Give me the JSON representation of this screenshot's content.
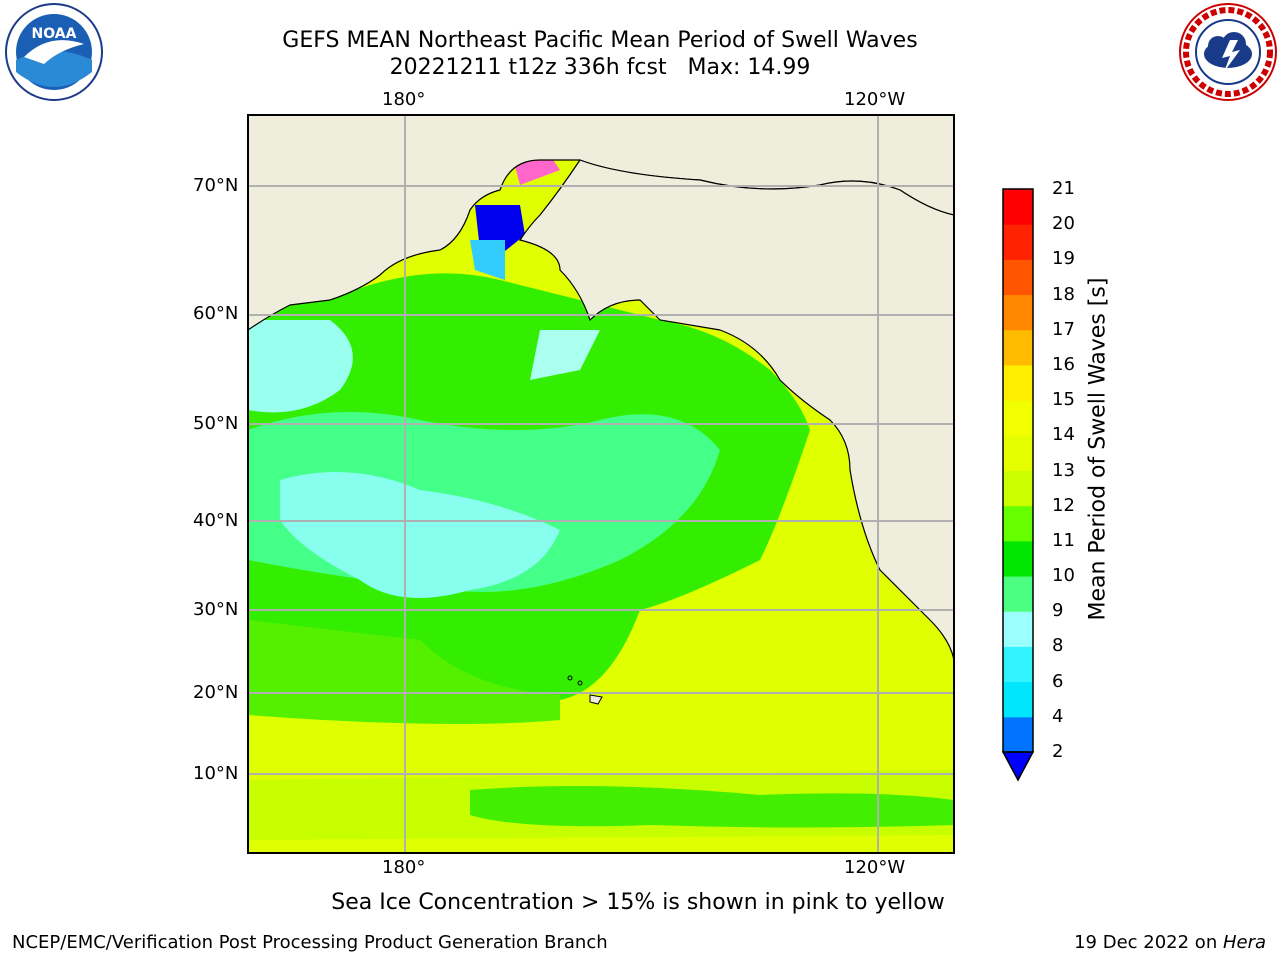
{
  "title": {
    "line1": "GEFS MEAN Northeast Pacific Mean Period of Swell Waves",
    "line2": "20221211 t12z 336h fcst   Max: 14.99"
  },
  "map": {
    "lon_ticks_top": [
      "180°",
      "120°W"
    ],
    "lon_ticks_bottom": [
      "180°",
      "120°W"
    ],
    "lat_ticks": [
      "70°N",
      "60°N",
      "50°N",
      "40°N",
      "30°N",
      "20°N",
      "10°N"
    ],
    "colors": {
      "land": "#efeedc",
      "grid": "#b0b0b0"
    }
  },
  "colorbar": {
    "label": "Mean Period of Swell Waves [s]",
    "levels": [
      "2",
      "4",
      "6",
      "8",
      "9",
      "10",
      "11",
      "12",
      "13",
      "14",
      "15",
      "16",
      "17",
      "18",
      "19",
      "20",
      "21"
    ],
    "colors": [
      "#0073ff",
      "#00e6ff",
      "#33f2ff",
      "#99ffff",
      "#4dff80",
      "#00e600",
      "#66ff00",
      "#ccff00",
      "#e6ff00",
      "#f2ff00",
      "#ffee00",
      "#ffbb00",
      "#ff8800",
      "#ff5500",
      "#ff2200",
      "#ff0000"
    ],
    "extend_color": "#0000ff"
  },
  "note": "Sea Ice Concentration > 15% is shown in pink to yellow",
  "footer": {
    "left": "NCEP/EMC/Verification Post Processing Product Generation Branch",
    "right_prefix": "19 Dec 2022 on ",
    "right_machine": "Hera"
  },
  "logos": {
    "noaa_text": "NOAA",
    "nws_text": "NATIONAL WEATHER SERVICE"
  }
}
